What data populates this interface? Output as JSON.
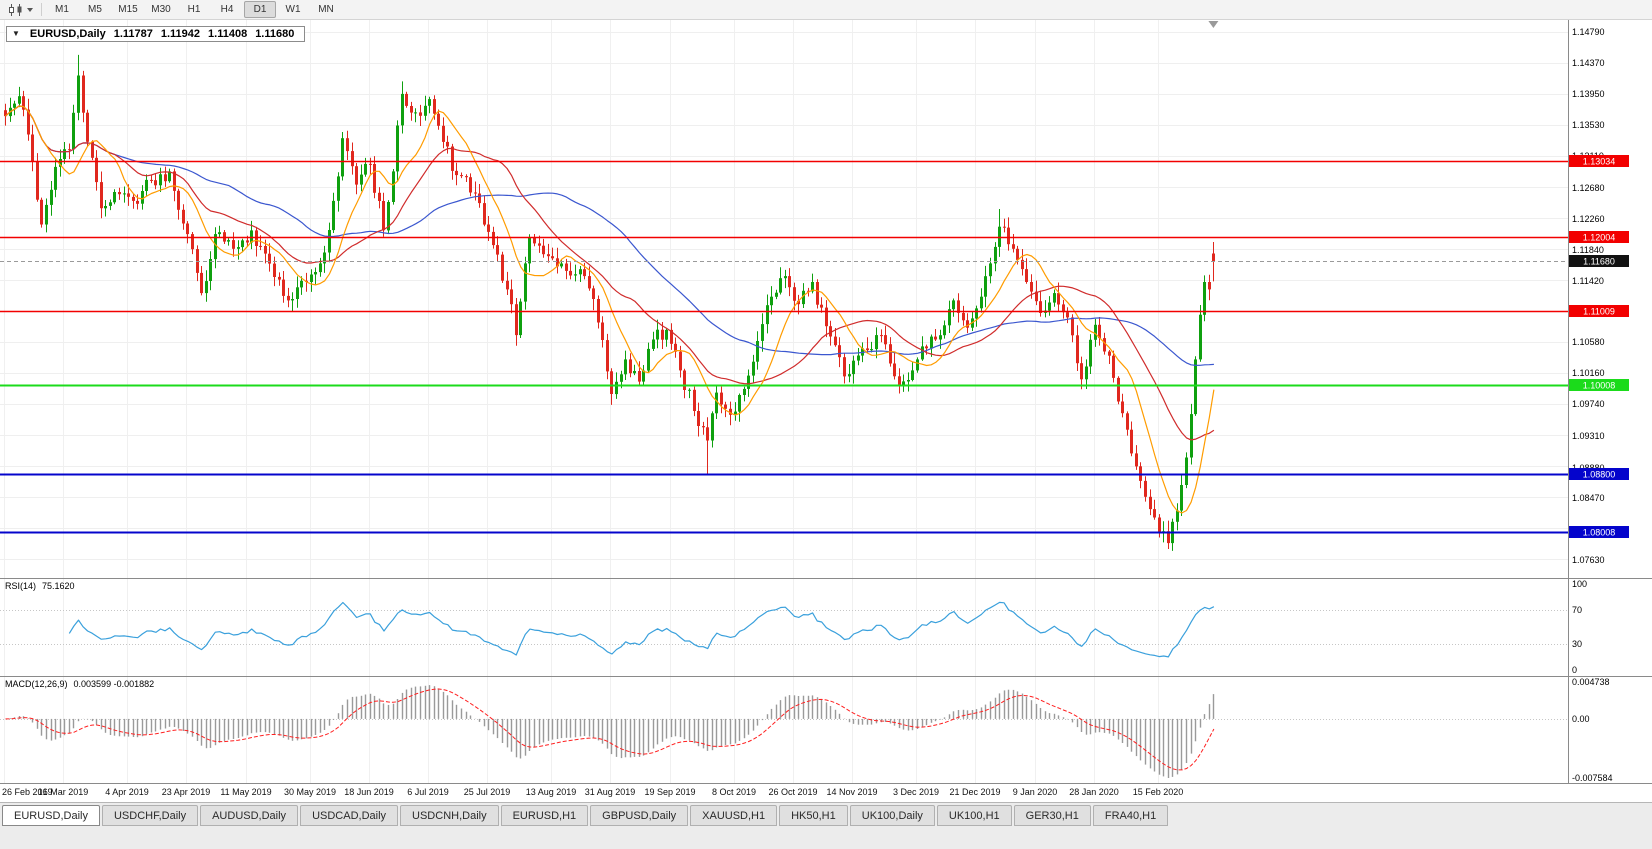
{
  "toolbar": {
    "chart_type_icon": "candlestick-chart-icon",
    "timeframes": [
      "M1",
      "M5",
      "M15",
      "M30",
      "H1",
      "H4",
      "D1",
      "W1",
      "MN"
    ],
    "active_timeframe": "D1"
  },
  "header": {
    "collapse_icon": "▼",
    "symbol": "EURUSD,Daily",
    "open": "1.11787",
    "high": "1.11942",
    "low": "1.11408",
    "close": "1.11680"
  },
  "price_axis": {
    "labels": [
      "1.14790",
      "1.14370",
      "1.13950",
      "1.13530",
      "1.13110",
      "1.12680",
      "1.12260",
      "1.11840",
      "1.11420",
      "1.10580",
      "1.10160",
      "1.09740",
      "1.09310",
      "1.08880",
      "1.08470",
      "1.07630"
    ],
    "grid_step": 0.0042
  },
  "levels": [
    {
      "price": 1.13034,
      "label": "1.13034",
      "color": "#f20000",
      "width": 1.5
    },
    {
      "price": 1.12004,
      "label": "1.12004",
      "color": "#f20000",
      "width": 1.5
    },
    {
      "price": 1.11009,
      "label": "1.11009",
      "color": "#f20000",
      "width": 1.5
    },
    {
      "price": 1.10008,
      "label": "1.10008",
      "color": "#1bdb1b",
      "width": 2
    },
    {
      "price": 1.088,
      "label": "1.08800",
      "color": "#0404cc",
      "width": 2
    },
    {
      "price": 1.08008,
      "label": "1.08008",
      "color": "#0404cc",
      "width": 2
    }
  ],
  "current_price": {
    "price": 1.1168,
    "label": "1.11680",
    "chip_color": "#111111",
    "line_style": "dashed"
  },
  "date_axis": [
    "26 Feb 2019",
    "16 Mar 2019",
    "4 Apr 2019",
    "23 Apr 2019",
    "11 May 2019",
    "30 May 2019",
    "18 Jun 2019",
    "6 Jul 2019",
    "25 Jul 2019",
    "13 Aug 2019",
    "31 Aug 2019",
    "19 Sep 2019",
    "8 Oct 2019",
    "26 Oct 2019",
    "14 Nov 2019",
    "3 Dec 2019",
    "21 Dec 2019",
    "9 Jan 2020",
    "28 Jan 2020",
    "15 Feb 2020"
  ],
  "rsi": {
    "name": "RSI(14)",
    "value": "75.1620",
    "levels": [
      "100",
      "70",
      "30",
      "0"
    ]
  },
  "macd": {
    "name": "MACD(12,26,9)",
    "values": "0.003599 -0.001882",
    "axis_max": "0.004738",
    "axis_zero": "0.00",
    "axis_min": "-0.007584"
  },
  "tabs": [
    {
      "label": "EURUSD,Daily",
      "active": true
    },
    {
      "label": "USDCHF,Daily",
      "active": false
    },
    {
      "label": "AUDUSD,Daily",
      "active": false
    },
    {
      "label": "USDCAD,Daily",
      "active": false
    },
    {
      "label": "USDCNH,Daily",
      "active": false
    },
    {
      "label": "EURUSD,H1",
      "active": false
    },
    {
      "label": "GBPUSD,Daily",
      "active": false
    },
    {
      "label": "XAUUSD,H1",
      "active": false
    },
    {
      "label": "HK50,H1",
      "active": false
    },
    {
      "label": "UK100,Daily",
      "active": false
    },
    {
      "label": "UK100,H1",
      "active": false
    },
    {
      "label": "GER30,H1",
      "active": false
    },
    {
      "label": "FRA40,H1",
      "active": false
    }
  ],
  "chart_data": {
    "type": "candlestick",
    "symbol": "EURUSD",
    "timeframe": "Daily",
    "num_candles": 266,
    "price_range": {
      "axis_top": 1.1479,
      "axis_bottom": 1.0763
    },
    "last_candle": {
      "open": 1.11787,
      "high": 1.11942,
      "low": 1.11408,
      "close": 1.1168
    },
    "close_waypoints": [
      [
        0,
        1.1365
      ],
      [
        3,
        1.1392
      ],
      [
        5,
        1.134
      ],
      [
        8,
        1.1218
      ],
      [
        11,
        1.1296
      ],
      [
        14,
        1.132
      ],
      [
        16,
        1.142
      ],
      [
        18,
        1.133
      ],
      [
        21,
        1.124
      ],
      [
        24,
        1.1262
      ],
      [
        28,
        1.125
      ],
      [
        32,
        1.1278
      ],
      [
        36,
        1.129
      ],
      [
        40,
        1.1205
      ],
      [
        43,
        1.1125
      ],
      [
        46,
        1.1205
      ],
      [
        50,
        1.1185
      ],
      [
        54,
        1.121
      ],
      [
        58,
        1.1165
      ],
      [
        62,
        1.1115
      ],
      [
        66,
        1.114
      ],
      [
        70,
        1.118
      ],
      [
        72,
        1.125
      ],
      [
        74,
        1.1335
      ],
      [
        77,
        1.1272
      ],
      [
        80,
        1.13
      ],
      [
        83,
        1.121
      ],
      [
        85,
        1.129
      ],
      [
        87,
        1.1395
      ],
      [
        90,
        1.137
      ],
      [
        93,
        1.1388
      ],
      [
        96,
        1.133
      ],
      [
        99,
        1.1285
      ],
      [
        103,
        1.126
      ],
      [
        107,
        1.119
      ],
      [
        110,
        1.113
      ],
      [
        112,
        1.1068
      ],
      [
        115,
        1.12
      ],
      [
        119,
        1.1175
      ],
      [
        123,
        1.1155
      ],
      [
        127,
        1.1148
      ],
      [
        130,
        1.1085
      ],
      [
        133,
        1.0988
      ],
      [
        136,
        1.1035
      ],
      [
        139,
        1.1005
      ],
      [
        142,
        1.1062
      ],
      [
        145,
        1.1075
      ],
      [
        148,
        1.102
      ],
      [
        151,
        1.0965
      ],
      [
        154,
        1.0925
      ],
      [
        156,
        1.099
      ],
      [
        159,
        1.096
      ],
      [
        162,
        1.0995
      ],
      [
        165,
        1.106
      ],
      [
        168,
        1.112
      ],
      [
        171,
        1.1148
      ],
      [
        174,
        1.111
      ],
      [
        177,
        1.114
      ],
      [
        180,
        1.108
      ],
      [
        184,
        1.1012
      ],
      [
        188,
        1.105
      ],
      [
        192,
        1.1068
      ],
      [
        196,
        1.1
      ],
      [
        200,
        1.1035
      ],
      [
        204,
        1.1062
      ],
      [
        208,
        1.1115
      ],
      [
        211,
        1.1078
      ],
      [
        214,
        1.112
      ],
      [
        218,
        1.1215
      ],
      [
        221,
        1.1185
      ],
      [
        224,
        1.114
      ],
      [
        227,
        1.1098
      ],
      [
        230,
        1.1125
      ],
      [
        233,
        1.1092
      ],
      [
        236,
        1.1008
      ],
      [
        239,
        1.1082
      ],
      [
        242,
        1.104
      ],
      [
        245,
        1.0962
      ],
      [
        248,
        1.089
      ],
      [
        251,
        1.0832
      ],
      [
        253,
        1.08
      ],
      [
        255,
        1.0786
      ],
      [
        257,
        1.083
      ],
      [
        259,
        1.0902
      ],
      [
        261,
        1.1035
      ],
      [
        263,
        1.114
      ],
      [
        264,
        1.113
      ],
      [
        265,
        1.1168
      ]
    ],
    "wick_spikes": [
      {
        "index": 16,
        "high": 1.1448
      },
      {
        "index": 87,
        "high": 1.1412
      },
      {
        "index": 218,
        "high": 1.1239
      },
      {
        "index": 154,
        "low": 1.0879
      },
      {
        "index": 255,
        "low": 1.0778
      }
    ],
    "moving_averages": [
      {
        "name": "slow",
        "period": 50,
        "color": "#3b57cf"
      },
      {
        "name": "medium",
        "period": 25,
        "color": "#d02c2c"
      },
      {
        "name": "fast",
        "period": 10,
        "color": "#ff9c00"
      }
    ],
    "indicators": {
      "rsi": {
        "period": 14,
        "color": "#3aa0dc",
        "overbought": 70,
        "oversold": 30,
        "scale_max": 100,
        "scale_min": 0
      },
      "macd": {
        "fast": 12,
        "slow": 26,
        "signal": 9,
        "hist_color": "#9a9a9a",
        "signal_color": "#ff2020",
        "scale_max": 0.004738,
        "scale_min": -0.007584
      }
    },
    "candle_up_color": "#0fa00f",
    "candle_down_color": "#e0281e"
  }
}
